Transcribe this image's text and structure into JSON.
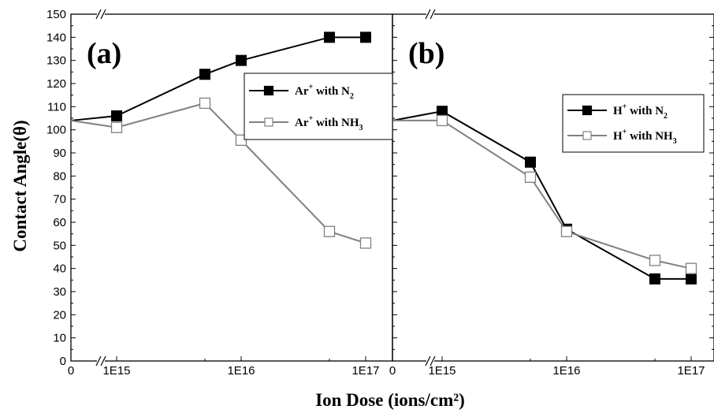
{
  "chart_data": [
    {
      "type": "line",
      "panel_label": "(a)",
      "ylabel": "Contact Angle(θ)",
      "xlabel": "Ion Dose (ions/cm²)",
      "ylim": [
        0,
        150
      ],
      "yticks": [
        0,
        10,
        20,
        30,
        40,
        50,
        60,
        70,
        80,
        90,
        100,
        110,
        120,
        130,
        140,
        150
      ],
      "x_scale": "log, with broken axis segment at 0",
      "xticks": [
        "0",
        "1E15",
        "1E16",
        "1E17"
      ],
      "x_values": [
        "0",
        "1E15",
        "5E15",
        "1E16",
        "5E16",
        "1E17"
      ],
      "grid": false,
      "legend_position": "top-right",
      "series": [
        {
          "name": "Ar+ with N2",
          "legend_base": "Ar",
          "legend_sup": "+",
          "legend_mid": " with N",
          "legend_sub": "2",
          "color": "#000000",
          "marker": "filled-square",
          "values": [
            104,
            106,
            124,
            130,
            140,
            140
          ]
        },
        {
          "name": "Ar+ with NH3",
          "legend_base": "Ar",
          "legend_sup": "+",
          "legend_mid": " with NH",
          "legend_sub": "3",
          "color": "#808080",
          "marker": "open-square",
          "values": [
            104,
            101,
            111.5,
            95.5,
            56,
            51
          ]
        }
      ]
    },
    {
      "type": "line",
      "panel_label": "(b)",
      "ylim": [
        0,
        150
      ],
      "x_scale": "log, with broken axis segment at 0",
      "xticks": [
        "0",
        "1E15",
        "1E16",
        "1E17"
      ],
      "x_values": [
        "0",
        "1E15",
        "5E15",
        "1E16",
        "5E16",
        "1E17"
      ],
      "grid": false,
      "legend_position": "top-right",
      "series": [
        {
          "name": "H+ with N2",
          "legend_base": "H",
          "legend_sup": "+",
          "legend_mid": " with N",
          "legend_sub": "2",
          "color": "#000000",
          "marker": "filled-square",
          "values": [
            104,
            108,
            86,
            57,
            35.5,
            35.5
          ]
        },
        {
          "name": "H+ with NH3",
          "legend_base": "H",
          "legend_sup": "+",
          "legend_mid": " with NH",
          "legend_sub": "3",
          "color": "#808080",
          "marker": "open-square",
          "values": [
            104,
            104,
            79.5,
            56,
            43.5,
            40
          ]
        }
      ]
    }
  ]
}
